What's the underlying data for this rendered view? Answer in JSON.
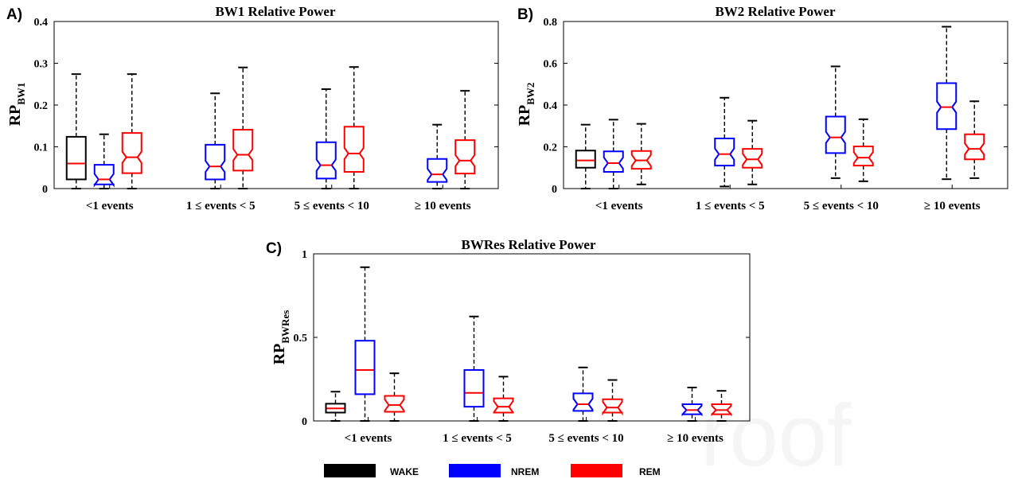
{
  "legend": [
    {
      "label": "WAKE",
      "color": "#000000"
    },
    {
      "label": "NREM",
      "color": "#0000ff"
    },
    {
      "label": "REM",
      "color": "#ff0000"
    }
  ],
  "watermark": "roof",
  "chart_data": [
    {
      "type": "box",
      "panel_label": "A)",
      "title": "BW1 Relative Power",
      "ylabel": "RP",
      "ylabel_sub": "BW1",
      "ylim": [
        0,
        0.4
      ],
      "yticks": [
        "0",
        "0.1",
        "0.2",
        "0.3",
        "0.4"
      ],
      "categories": [
        "<1 events",
        "1 ≤ events < 5",
        "5 ≤ events < 10",
        "≥ 10 events"
      ],
      "boxes": [
        {
          "category": 0,
          "state": "WAKE",
          "color": "#000000",
          "min": 0.0,
          "q1": 0.022,
          "median": 0.06,
          "q3": 0.124,
          "max": 0.274,
          "notched": false
        },
        {
          "category": 0,
          "state": "NREM",
          "color": "#0000ff",
          "min": 0.0,
          "q1": 0.01,
          "median": 0.022,
          "q3": 0.057,
          "max": 0.13,
          "notched": true
        },
        {
          "category": 0,
          "state": "REM",
          "color": "#ff0000",
          "min": 0.0,
          "q1": 0.037,
          "median": 0.075,
          "q3": 0.133,
          "max": 0.274,
          "notched": true
        },
        {
          "category": 1,
          "state": "NREM",
          "color": "#0000ff",
          "min": 0.0,
          "q1": 0.022,
          "median": 0.053,
          "q3": 0.105,
          "max": 0.228,
          "notched": true
        },
        {
          "category": 1,
          "state": "REM",
          "color": "#ff0000",
          "min": 0.0,
          "q1": 0.043,
          "median": 0.081,
          "q3": 0.141,
          "max": 0.29,
          "notched": true
        },
        {
          "category": 2,
          "state": "NREM",
          "color": "#0000ff",
          "min": 0.0,
          "q1": 0.024,
          "median": 0.056,
          "q3": 0.111,
          "max": 0.238,
          "notched": true
        },
        {
          "category": 2,
          "state": "REM",
          "color": "#ff0000",
          "min": 0.0,
          "q1": 0.04,
          "median": 0.084,
          "q3": 0.148,
          "max": 0.291,
          "notched": true
        },
        {
          "category": 3,
          "state": "NREM",
          "color": "#0000ff",
          "min": 0.0,
          "q1": 0.016,
          "median": 0.034,
          "q3": 0.071,
          "max": 0.153,
          "notched": true
        },
        {
          "category": 3,
          "state": "REM",
          "color": "#ff0000",
          "min": 0.0,
          "q1": 0.036,
          "median": 0.067,
          "q3": 0.116,
          "max": 0.234,
          "notched": true
        }
      ]
    },
    {
      "type": "box",
      "panel_label": "B)",
      "title": "BW2 Relative Power",
      "ylabel": "RP",
      "ylabel_sub": "BW2",
      "ylim": [
        0,
        0.8
      ],
      "yticks": [
        "0",
        "0.2",
        "0.4",
        "0.6",
        "0.8"
      ],
      "categories": [
        "<1 events",
        "1 ≤ events < 5",
        "5 ≤ events < 10",
        "≥ 10 events"
      ],
      "boxes": [
        {
          "category": 0,
          "state": "WAKE",
          "color": "#000000",
          "min": 0.0,
          "q1": 0.1,
          "median": 0.135,
          "q3": 0.182,
          "max": 0.306,
          "notched": false
        },
        {
          "category": 0,
          "state": "NREM",
          "color": "#0000ff",
          "min": 0.0,
          "q1": 0.08,
          "median": 0.122,
          "q3": 0.178,
          "max": 0.33,
          "notched": true
        },
        {
          "category": 0,
          "state": "REM",
          "color": "#ff0000",
          "min": 0.02,
          "q1": 0.095,
          "median": 0.135,
          "q3": 0.18,
          "max": 0.31,
          "notched": true
        },
        {
          "category": 1,
          "state": "NREM",
          "color": "#0000ff",
          "min": 0.01,
          "q1": 0.11,
          "median": 0.165,
          "q3": 0.24,
          "max": 0.435,
          "notched": true
        },
        {
          "category": 1,
          "state": "REM",
          "color": "#ff0000",
          "min": 0.02,
          "q1": 0.1,
          "median": 0.14,
          "q3": 0.19,
          "max": 0.325,
          "notched": true
        },
        {
          "category": 2,
          "state": "NREM",
          "color": "#0000ff",
          "min": 0.05,
          "q1": 0.17,
          "median": 0.245,
          "q3": 0.345,
          "max": 0.585,
          "notched": true
        },
        {
          "category": 2,
          "state": "REM",
          "color": "#ff0000",
          "min": 0.035,
          "q1": 0.11,
          "median": 0.148,
          "q3": 0.202,
          "max": 0.332,
          "notched": true
        },
        {
          "category": 3,
          "state": "NREM",
          "color": "#0000ff",
          "min": 0.045,
          "q1": 0.285,
          "median": 0.39,
          "q3": 0.505,
          "max": 0.775,
          "notched": true
        },
        {
          "category": 3,
          "state": "REM",
          "color": "#ff0000",
          "min": 0.05,
          "q1": 0.14,
          "median": 0.19,
          "q3": 0.26,
          "max": 0.418,
          "notched": true
        }
      ]
    },
    {
      "type": "box",
      "panel_label": "C)",
      "title": "BWRes Relative Power",
      "ylabel": "RP",
      "ylabel_sub": "BWRes",
      "ylim": [
        0,
        1
      ],
      "yticks": [
        "0",
        "0.5",
        "1"
      ],
      "categories": [
        "<1 events",
        "1 ≤ events < 5",
        "5 ≤ events < 10",
        "≥ 10 events"
      ],
      "boxes": [
        {
          "category": 0,
          "state": "WAKE",
          "color": "#000000",
          "min": 0.0,
          "q1": 0.05,
          "median": 0.075,
          "q3": 0.103,
          "max": 0.175,
          "notched": false
        },
        {
          "category": 0,
          "state": "NREM",
          "color": "#0000ff",
          "min": 0.0,
          "q1": 0.16,
          "median": 0.305,
          "q3": 0.48,
          "max": 0.92,
          "notched": false
        },
        {
          "category": 0,
          "state": "REM",
          "color": "#ff0000",
          "min": 0.0,
          "q1": 0.055,
          "median": 0.095,
          "q3": 0.15,
          "max": 0.285,
          "notched": true
        },
        {
          "category": 1,
          "state": "NREM",
          "color": "#0000ff",
          "min": 0.0,
          "q1": 0.085,
          "median": 0.168,
          "q3": 0.305,
          "max": 0.625,
          "notched": false
        },
        {
          "category": 1,
          "state": "REM",
          "color": "#ff0000",
          "min": 0.0,
          "q1": 0.05,
          "median": 0.085,
          "q3": 0.135,
          "max": 0.265,
          "notched": true
        },
        {
          "category": 2,
          "state": "NREM",
          "color": "#0000ff",
          "min": 0.0,
          "q1": 0.06,
          "median": 0.1,
          "q3": 0.165,
          "max": 0.32,
          "notched": true
        },
        {
          "category": 2,
          "state": "REM",
          "color": "#ff0000",
          "min": 0.0,
          "q1": 0.05,
          "median": 0.08,
          "q3": 0.13,
          "max": 0.245,
          "notched": true
        },
        {
          "category": 3,
          "state": "NREM",
          "color": "#0000ff",
          "min": 0.0,
          "q1": 0.04,
          "median": 0.065,
          "q3": 0.1,
          "max": 0.2,
          "notched": true
        },
        {
          "category": 3,
          "state": "REM",
          "color": "#ff0000",
          "min": 0.0,
          "q1": 0.04,
          "median": 0.065,
          "q3": 0.1,
          "max": 0.18,
          "notched": true
        }
      ]
    }
  ]
}
